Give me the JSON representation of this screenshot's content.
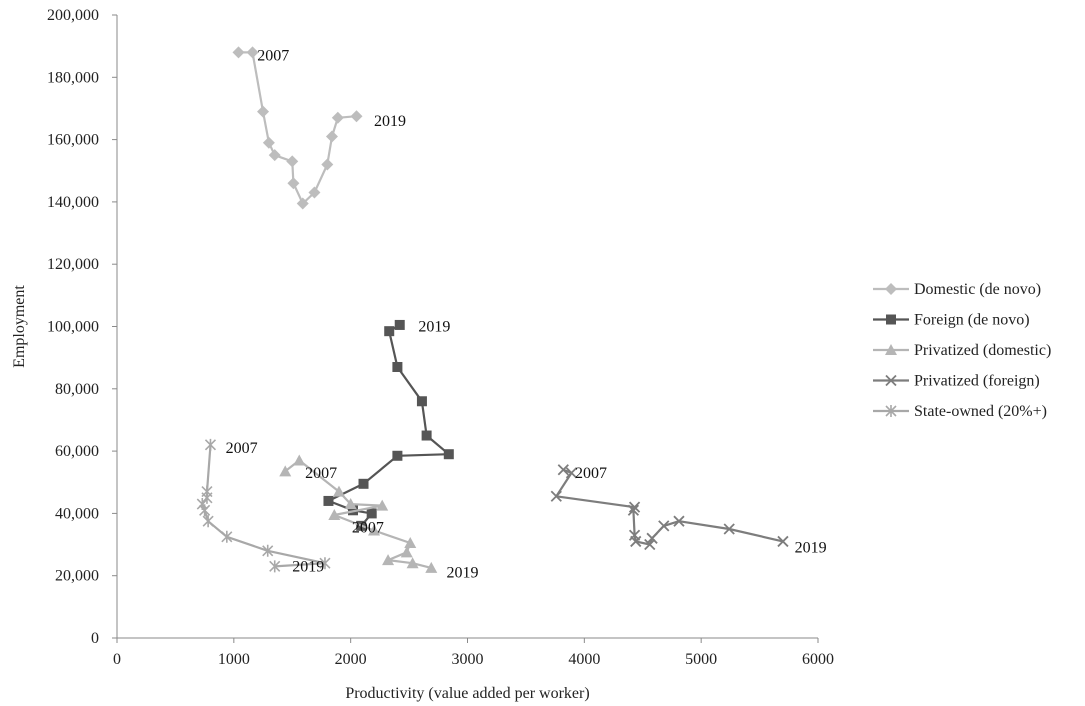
{
  "chart_data": {
    "type": "scatter",
    "xlabel": "Productivity (value added per worker)",
    "ylabel": "Employment",
    "xlim": [
      0,
      6000
    ],
    "ylim": [
      0,
      200000
    ],
    "x_ticks": [
      "0",
      "1000",
      "2000",
      "3000",
      "4000",
      "5000",
      "6000"
    ],
    "y_ticks": [
      "0",
      "20,000",
      "40,000",
      "60,000",
      "80,000",
      "100,000",
      "120,000",
      "140,000",
      "160,000",
      "180,000",
      "200,000"
    ],
    "grid": false,
    "legend_position": "right",
    "series": [
      {
        "name": "Domestic (de novo)",
        "color": "#bdbdbd",
        "marker": "diamond",
        "points": [
          [
            1040,
            188000
          ],
          [
            1160,
            188000
          ],
          [
            1250,
            169000
          ],
          [
            1300,
            159000
          ],
          [
            1350,
            155000
          ],
          [
            1500,
            153000
          ],
          [
            1510,
            146000
          ],
          [
            1590,
            139500
          ],
          [
            1690,
            143000
          ],
          [
            1800,
            152000
          ],
          [
            1840,
            161000
          ],
          [
            1890,
            167000
          ],
          [
            2050,
            167500
          ]
        ]
      },
      {
        "name": "Foreign (de novo)",
        "color": "#555555",
        "marker": "square",
        "points": [
          [
            2420,
            100500
          ],
          [
            2330,
            98500
          ],
          [
            2400,
            87000
          ],
          [
            2610,
            76000
          ],
          [
            2650,
            65000
          ],
          [
            2840,
            59000
          ],
          [
            2400,
            58500
          ],
          [
            2110,
            49500
          ],
          [
            1810,
            44000
          ],
          [
            2020,
            41000
          ],
          [
            2180,
            40000
          ],
          [
            2090,
            36000
          ]
        ]
      },
      {
        "name": "Privatized (domestic)",
        "color": "#b5b5b5",
        "marker": "triangle",
        "points": [
          [
            1440,
            53500
          ],
          [
            1560,
            57000
          ],
          [
            1900,
            47000
          ],
          [
            2000,
            43000
          ],
          [
            2270,
            42500
          ],
          [
            1860,
            39500
          ],
          [
            2200,
            34500
          ],
          [
            2510,
            30500
          ],
          [
            2480,
            27500
          ],
          [
            2320,
            25000
          ],
          [
            2530,
            24000
          ],
          [
            2690,
            22500
          ]
        ]
      },
      {
        "name": "Privatized (foreign)",
        "color": "#7d7d7d",
        "marker": "x",
        "points": [
          [
            3820,
            54000
          ],
          [
            3890,
            53000
          ],
          [
            3760,
            45500
          ],
          [
            4430,
            42000
          ],
          [
            4420,
            41000
          ],
          [
            4430,
            33000
          ],
          [
            4440,
            31000
          ],
          [
            4560,
            30000
          ],
          [
            4580,
            32000
          ],
          [
            4680,
            36000
          ],
          [
            4810,
            37500
          ],
          [
            5240,
            35000
          ],
          [
            5700,
            31000
          ]
        ]
      },
      {
        "name": "State-owned (20%+)",
        "color": "#a8a8a8",
        "marker": "star",
        "points": [
          [
            800,
            62000
          ],
          [
            770,
            47000
          ],
          [
            770,
            45000
          ],
          [
            730,
            43000
          ],
          [
            750,
            41000
          ],
          [
            780,
            37500
          ],
          [
            940,
            32500
          ],
          [
            1290,
            28000
          ],
          [
            1780,
            24000
          ],
          [
            1350,
            23000
          ]
        ]
      }
    ],
    "annotations": [
      {
        "text": "2007",
        "x": 1200,
        "y": 187000
      },
      {
        "text": "2019",
        "x": 2200,
        "y": 166000
      },
      {
        "text": "2019",
        "x": 2580,
        "y": 100000
      },
      {
        "text": "2007",
        "x": 930,
        "y": 61000
      },
      {
        "text": "2007",
        "x": 1610,
        "y": 53000
      },
      {
        "text": "2007",
        "x": 2010,
        "y": 35500
      },
      {
        "text": "2019",
        "x": 1500,
        "y": 23000
      },
      {
        "text": "2019",
        "x": 2820,
        "y": 21000
      },
      {
        "text": "2007",
        "x": 3920,
        "y": 53000
      },
      {
        "text": "2019",
        "x": 5800,
        "y": 29000
      }
    ]
  }
}
